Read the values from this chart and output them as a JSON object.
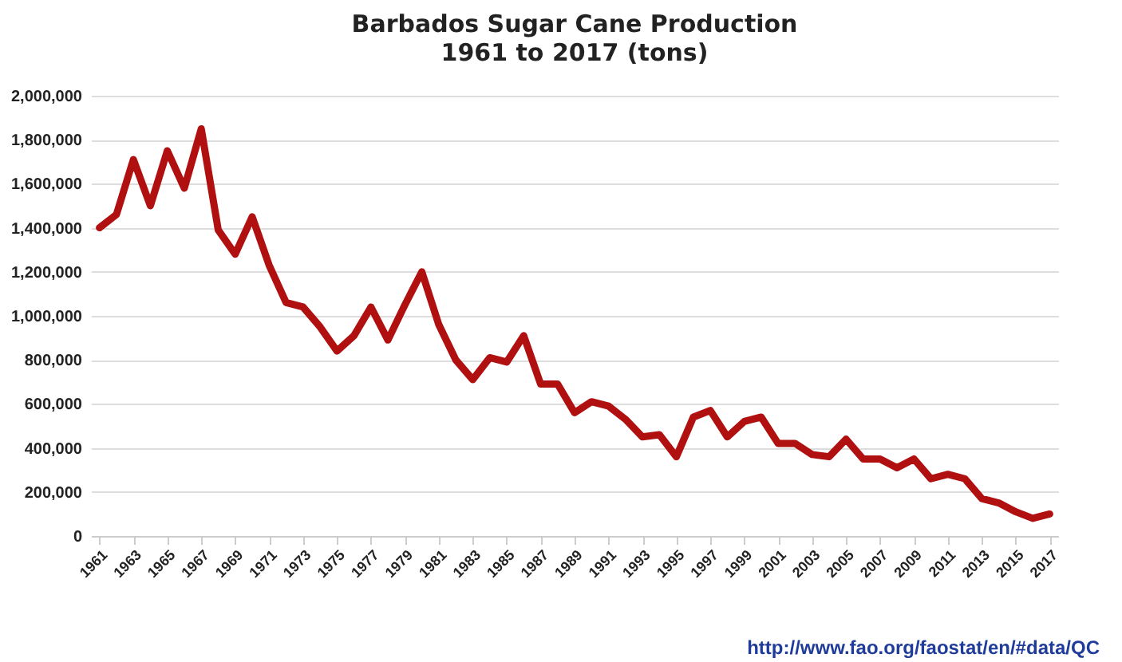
{
  "chart_data": {
    "type": "line",
    "title": "Barbados Sugar Cane Production",
    "subtitle": "1961 to 2017 (tons)",
    "x": [
      1961,
      1962,
      1963,
      1964,
      1965,
      1966,
      1967,
      1968,
      1969,
      1970,
      1971,
      1972,
      1973,
      1974,
      1975,
      1976,
      1977,
      1978,
      1979,
      1980,
      1981,
      1982,
      1983,
      1984,
      1985,
      1986,
      1987,
      1988,
      1989,
      1990,
      1991,
      1992,
      1993,
      1994,
      1995,
      1996,
      1997,
      1998,
      1999,
      2000,
      2001,
      2002,
      2003,
      2004,
      2005,
      2006,
      2007,
      2008,
      2009,
      2010,
      2011,
      2012,
      2013,
      2014,
      2015,
      2016,
      2017
    ],
    "series": [
      {
        "color": "#b01010",
        "values": [
          1400000,
          1460000,
          1710000,
          1500000,
          1750000,
          1580000,
          1850000,
          1390000,
          1280000,
          1450000,
          1230000,
          1060000,
          1040000,
          950000,
          840000,
          910000,
          1040000,
          890000,
          1050000,
          1200000,
          960000,
          800000,
          710000,
          810000,
          790000,
          910000,
          690000,
          690000,
          560000,
          610000,
          590000,
          530000,
          450000,
          460000,
          360000,
          540000,
          570000,
          450000,
          520000,
          540000,
          420000,
          420000,
          370000,
          360000,
          440000,
          350000,
          350000,
          310000,
          350000,
          260000,
          280000,
          260000,
          170000,
          150000,
          110000,
          80000,
          100000
        ]
      }
    ],
    "xlim": [
      1960.5,
      2017.5
    ],
    "xticks": [
      1961,
      1963,
      1965,
      1967,
      1969,
      1971,
      1973,
      1975,
      1977,
      1979,
      1981,
      1983,
      1985,
      1987,
      1989,
      1991,
      1993,
      1995,
      1997,
      1999,
      2001,
      2003,
      2005,
      2007,
      2009,
      2011,
      2013,
      2015,
      2017
    ],
    "ylim": [
      0,
      2000000
    ],
    "yticks": [
      0,
      {
        "value": 200000,
        "label": "200,000"
      },
      {
        "value": 400000,
        "label": "400,000"
      },
      {
        "value": 600000,
        "label": "600,000"
      },
      {
        "value": 800000,
        "label": "800,000"
      },
      {
        "value": 1000000,
        "label": "1,000,000"
      },
      {
        "value": 1200000,
        "label": "1,200,000"
      },
      {
        "value": 1400000,
        "label": "1,400,000"
      },
      {
        "value": 1600000,
        "label": "1,600,000"
      },
      {
        "value": 1800000,
        "label": "1,800,000"
      },
      {
        "value": 2000000,
        "label": "2,000,000"
      }
    ],
    "grid": "y",
    "legend": false,
    "marker": "none",
    "line_style": "solid",
    "annotations": [
      "http://www.fao.org/faostat/en/#data/QC"
    ]
  }
}
